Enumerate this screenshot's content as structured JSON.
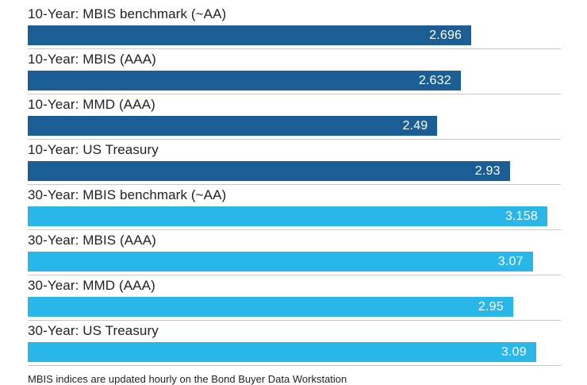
{
  "chart_data": {
    "type": "bar",
    "orientation": "horizontal",
    "title": "",
    "xlabel": "",
    "ylabel": "",
    "xlim": [
      0,
      3.24
    ],
    "grid": false,
    "legend": false,
    "categories": [
      "10-Year: MBIS benchmark (~AA)",
      "10-Year: MBIS (AAA)",
      "10-Year: MMD (AAA)",
      "10-Year: US Treasury",
      "30-Year: MBIS benchmark (~AA)",
      "30-Year: MBIS (AAA)",
      "30-Year: MMD (AAA)",
      "30-Year: US Treasury"
    ],
    "values": [
      2.696,
      2.632,
      2.49,
      2.93,
      3.158,
      3.07,
      2.95,
      3.09
    ],
    "bars": [
      {
        "label": "10-Year: MBIS benchmark (~AA)",
        "value": 2.696,
        "display": "2.696",
        "group": "10-year"
      },
      {
        "label": "10-Year: MBIS (AAA)",
        "value": 2.632,
        "display": "2.632",
        "group": "10-year"
      },
      {
        "label": "10-Year: MMD (AAA)",
        "value": 2.49,
        "display": "2.49",
        "group": "10-year"
      },
      {
        "label": "10-Year: US Treasury",
        "value": 2.93,
        "display": "2.93",
        "group": "10-year"
      },
      {
        "label": "30-Year: MBIS benchmark (~AA)",
        "value": 3.158,
        "display": "3.158",
        "group": "30-year"
      },
      {
        "label": "30-Year: MBIS (AAA)",
        "value": 3.07,
        "display": "3.07",
        "group": "30-year"
      },
      {
        "label": "30-Year: MMD (AAA)",
        "value": 2.95,
        "display": "2.95",
        "group": "30-year"
      },
      {
        "label": "30-Year: US Treasury",
        "value": 3.09,
        "display": "3.09",
        "group": "30-year"
      }
    ],
    "group_colors": {
      "10-year": "#1b5d95",
      "30-year": "#29b6e9"
    },
    "value_label_color": "#ffffff",
    "divider_color": "#c7c7c7",
    "footnote": "MBIS indices are updated hourly on the Bond Buyer Data Workstation"
  }
}
